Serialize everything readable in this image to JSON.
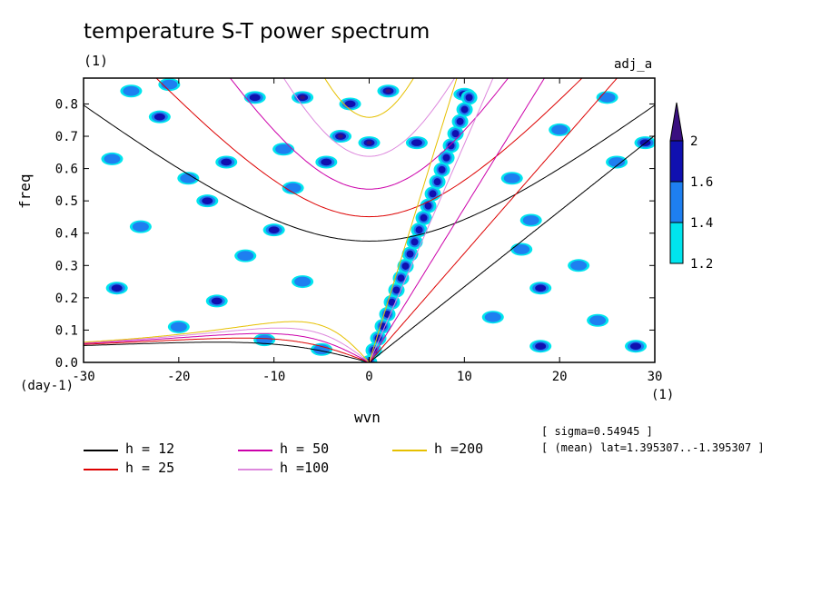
{
  "title": "temperature S-T power spectrum",
  "title_unit": "(1)",
  "dataset_label": "adj_a",
  "annotations": {
    "sigma": "[ sigma=0.54945 ]",
    "mean_lat": "[ (mean) lat=1.395307..-1.395307 ]"
  },
  "chart_data": {
    "type": "heatmap",
    "title": "temperature S-T power spectrum",
    "xlabel": "wvn",
    "ylabel": "freq",
    "x_unit": "(1)",
    "y_unit": "(day-1)",
    "xlim": [
      -30,
      30
    ],
    "ylim": [
      0.0,
      0.88
    ],
    "x_ticks": [
      -30,
      -20,
      -10,
      0,
      10,
      20,
      30
    ],
    "y_ticks": [
      0.0,
      0.1,
      0.2,
      0.3,
      0.4,
      0.5,
      0.6,
      0.7,
      0.8
    ],
    "colorbar": {
      "levels": [
        1.2,
        1.4,
        1.6,
        2
      ],
      "colors": [
        "#00e5ee",
        "#1e7ff0",
        "#1010b0",
        "#3a1080"
      ]
    },
    "dispersion_curves": [
      {
        "name": "h = 12",
        "h": 12,
        "color": "#000000"
      },
      {
        "name": "h = 25",
        "h": 25,
        "color": "#dd0000"
      },
      {
        "name": "h = 50",
        "h": 50,
        "color": "#cc00aa"
      },
      {
        "name": "h =100",
        "h": 100,
        "color": "#dd88dd"
      },
      {
        "name": "h =200",
        "h": 200,
        "color": "#e6c000"
      }
    ],
    "blobs": [
      {
        "x": -26.5,
        "y": 0.23,
        "v": 1.8
      },
      {
        "x": -25,
        "y": 0.84,
        "v": 1.5
      },
      {
        "x": -24,
        "y": 0.42,
        "v": 1.4
      },
      {
        "x": -22,
        "y": 0.76,
        "v": 1.6
      },
      {
        "x": -21,
        "y": 0.86,
        "v": 1.4
      },
      {
        "x": -19,
        "y": 0.57,
        "v": 1.4
      },
      {
        "x": -17,
        "y": 0.5,
        "v": 1.8
      },
      {
        "x": -16,
        "y": 0.19,
        "v": 1.6
      },
      {
        "x": -15,
        "y": 0.62,
        "v": 1.8
      },
      {
        "x": -13,
        "y": 0.33,
        "v": 1.4
      },
      {
        "x": -12,
        "y": 0.82,
        "v": 1.6
      },
      {
        "x": -10,
        "y": 0.41,
        "v": 1.8
      },
      {
        "x": -9,
        "y": 0.66,
        "v": 1.4
      },
      {
        "x": -7,
        "y": 0.25,
        "v": 1.4
      },
      {
        "x": -5,
        "y": 0.04,
        "v": 1.4
      },
      {
        "x": -4.5,
        "y": 0.62,
        "v": 1.8
      },
      {
        "x": -3,
        "y": 0.7,
        "v": 2.2
      },
      {
        "x": -2,
        "y": 0.8,
        "v": 1.6
      },
      {
        "x": -7,
        "y": 0.82,
        "v": 2.2
      },
      {
        "x": -8,
        "y": 0.54,
        "v": 1.4
      },
      {
        "x": 0,
        "y": 0.68,
        "v": 2.2
      },
      {
        "x": 2,
        "y": 0.84,
        "v": 2.2
      },
      {
        "x": 5,
        "y": 0.68,
        "v": 1.8
      },
      {
        "x": 10,
        "y": 0.83,
        "v": 2.2
      },
      {
        "x": 15,
        "y": 0.57,
        "v": 1.4
      },
      {
        "x": 17,
        "y": 0.44,
        "v": 1.4
      },
      {
        "x": 18,
        "y": 0.23,
        "v": 1.8
      },
      {
        "x": 20,
        "y": 0.72,
        "v": 1.4
      },
      {
        "x": 22,
        "y": 0.3,
        "v": 1.4
      },
      {
        "x": 24,
        "y": 0.13,
        "v": 1.4
      },
      {
        "x": 26,
        "y": 0.62,
        "v": 1.4
      },
      {
        "x": 28,
        "y": 0.05,
        "v": 1.6
      },
      {
        "x": 29,
        "y": 0.68,
        "v": 1.6
      },
      {
        "x": 13,
        "y": 0.14,
        "v": 1.4
      },
      {
        "x": 18,
        "y": 0.05,
        "v": 1.8
      },
      {
        "x": -20,
        "y": 0.11,
        "v": 1.4
      },
      {
        "x": -27,
        "y": 0.63,
        "v": 1.4
      },
      {
        "x": 25,
        "y": 0.82,
        "v": 1.4
      },
      {
        "x": 16,
        "y": 0.35,
        "v": 1.4
      },
      {
        "x": -11,
        "y": 0.07,
        "v": 1.4
      }
    ],
    "ridge": {
      "from": [
        0,
        0.0
      ],
      "to": [
        10.5,
        0.82
      ],
      "v": 2.0
    }
  },
  "legend": [
    {
      "label": "h = 12",
      "color": "#000000"
    },
    {
      "label": "h = 25",
      "color": "#dd0000"
    },
    {
      "label": "h = 50",
      "color": "#cc00aa"
    },
    {
      "label": "h =100",
      "color": "#dd88dd"
    },
    {
      "label": "h =200",
      "color": "#e6c000"
    }
  ]
}
